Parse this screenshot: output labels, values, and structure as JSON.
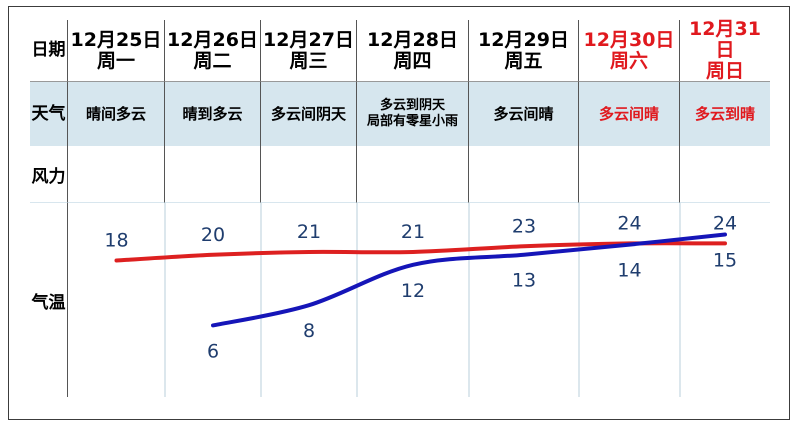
{
  "row_labels": {
    "date": "日期",
    "weather": "天气",
    "wind": "风力",
    "temp": "气温"
  },
  "days": [
    {
      "date": "12月25日",
      "weekday": "周一",
      "weather": "晴间多云",
      "weekend": false
    },
    {
      "date": "12月26日",
      "weekday": "周二",
      "weather": "晴到多云",
      "weekend": false
    },
    {
      "date": "12月27日",
      "weekday": "周三",
      "weather": "多云间阴天",
      "weekend": false
    },
    {
      "date": "12月28日",
      "weekday": "周四",
      "weather": "多云到阴天",
      "weather2": "局部有零星小雨",
      "weekend": false
    },
    {
      "date": "12月29日",
      "weekday": "周五",
      "weather": "多云间晴",
      "weekend": false
    },
    {
      "date": "12月30日",
      "weekday": "周六",
      "weather": "多云间晴",
      "weekend": true
    },
    {
      "date": "12月31日",
      "weekday": "周日",
      "weather": "多云到晴",
      "weekend": true
    }
  ],
  "colors": {
    "high": "#dd2020",
    "low": "#1515b8",
    "label": "#1f3d6e",
    "weekend": "#e0191e",
    "band": "#d6e6ee"
  },
  "chart_data": {
    "type": "line",
    "categories": [
      "12月25日",
      "12月26日",
      "12月27日",
      "12月28日",
      "12月29日",
      "12月30日",
      "12月31日"
    ],
    "series": [
      {
        "values": [
          18,
          20,
          21,
          21,
          23,
          24,
          24
        ]
      },
      {
        "values": [
          null,
          6,
          8,
          12,
          13,
          14,
          15
        ]
      }
    ],
    "grid": false
  }
}
